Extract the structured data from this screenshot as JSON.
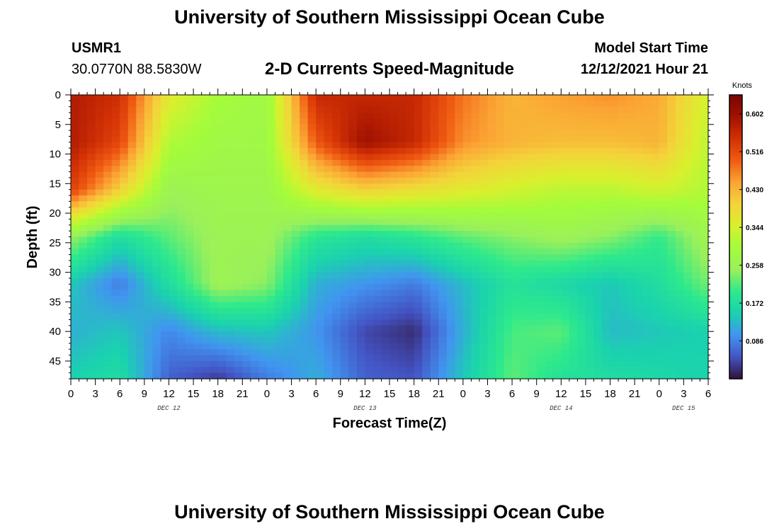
{
  "header": {
    "title": "University of Southern Mississippi Ocean Cube",
    "station": "USMR1",
    "coords": "30.0770N  88.5830W",
    "plot_title": "2-D Currents Speed-Magnitude",
    "model_start_label": "Model Start Time",
    "model_start_value": "12/12/2021 Hour 21"
  },
  "footer": {
    "title": "University of Southern Mississippi Ocean Cube"
  },
  "colors": {
    "ramp": [
      "#30123b",
      "#4454c4",
      "#4195f0",
      "#1ad2ae",
      "#2ee98c",
      "#9af05b",
      "#a4fc3b",
      "#d9f02d",
      "#f3d43a",
      "#fba434",
      "#f05b12",
      "#d23105",
      "#a11201",
      "#7a0403"
    ]
  },
  "chart_data": {
    "type": "heatmap",
    "title": "2-D Currents Speed-Magnitude",
    "xlabel": "Forecast Time(Z)",
    "ylabel": "Depth (ft)",
    "x_tick_labels": [
      "0",
      "3",
      "6",
      "9",
      "12",
      "15",
      "18",
      "21",
      "0",
      "3",
      "6",
      "9",
      "12",
      "15",
      "18",
      "21",
      "0",
      "3",
      "6",
      "9",
      "12",
      "15",
      "18",
      "21",
      "0",
      "3",
      "6"
    ],
    "x_hours": [
      0,
      78
    ],
    "day_labels": [
      {
        "label": "DEC 12",
        "hour": 12
      },
      {
        "label": "DEC 13",
        "hour": 36
      },
      {
        "label": "DEC 14",
        "hour": 60
      },
      {
        "label": "DEC 15",
        "hour": 75
      }
    ],
    "y_ticks": [
      0,
      5,
      10,
      15,
      20,
      25,
      30,
      35,
      40,
      45
    ],
    "ylim": [
      0,
      48
    ],
    "y_inverted": true,
    "colorbar": {
      "units": "Knots",
      "ticks": [
        "0.602",
        "0.516",
        "0.430",
        "0.344",
        "0.258",
        "0.172",
        "0.086"
      ],
      "range": [
        0.0,
        0.645
      ]
    },
    "grid_hours": [
      0,
      6,
      12,
      18,
      24,
      30,
      36,
      42,
      48,
      54,
      60,
      66,
      72,
      78
    ],
    "grid_depths": [
      0,
      8,
      16,
      24,
      32,
      40,
      48
    ],
    "speed_knots": [
      [
        0.58,
        0.55,
        0.36,
        0.3,
        0.28,
        0.56,
        0.56,
        0.56,
        0.48,
        0.43,
        0.45,
        0.46,
        0.44,
        0.34
      ],
      [
        0.58,
        0.52,
        0.31,
        0.28,
        0.28,
        0.5,
        0.6,
        0.56,
        0.46,
        0.43,
        0.42,
        0.42,
        0.43,
        0.32
      ],
      [
        0.53,
        0.4,
        0.26,
        0.27,
        0.27,
        0.36,
        0.4,
        0.38,
        0.36,
        0.34,
        0.32,
        0.32,
        0.34,
        0.31
      ],
      [
        0.25,
        0.17,
        0.22,
        0.26,
        0.26,
        0.19,
        0.17,
        0.19,
        0.22,
        0.24,
        0.26,
        0.24,
        0.2,
        0.27
      ],
      [
        0.14,
        0.08,
        0.17,
        0.26,
        0.24,
        0.12,
        0.1,
        0.08,
        0.13,
        0.18,
        0.16,
        0.14,
        0.17,
        0.23
      ],
      [
        0.12,
        0.14,
        0.09,
        0.13,
        0.14,
        0.1,
        0.04,
        0.02,
        0.12,
        0.21,
        0.22,
        0.13,
        0.14,
        0.15
      ],
      [
        0.15,
        0.17,
        0.06,
        0.03,
        0.08,
        0.12,
        0.06,
        0.05,
        0.14,
        0.22,
        0.18,
        0.17,
        0.16,
        0.15
      ]
    ]
  }
}
